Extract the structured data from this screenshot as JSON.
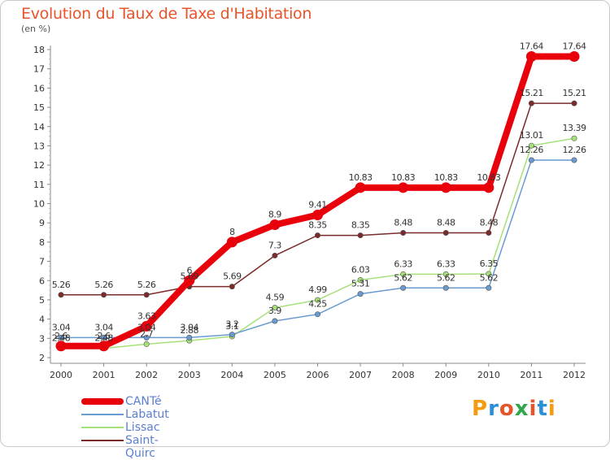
{
  "header": {
    "title": "Evolution du Taux de Taxe d'Habitation",
    "unit": "(en %)"
  },
  "chart_data": {
    "type": "line",
    "title": "Evolution du Taux de Taxe d'Habitation",
    "ylabel": "(en %)",
    "xlabel": "",
    "x": [
      2000,
      2001,
      2002,
      2003,
      2004,
      2005,
      2006,
      2007,
      2008,
      2009,
      2010,
      2011,
      2012
    ],
    "ylim": [
      2,
      18
    ],
    "yticks": [
      2,
      3,
      4,
      5,
      6,
      7,
      8,
      9,
      10,
      11,
      12,
      13,
      14,
      15,
      16,
      17,
      18
    ],
    "grid": false,
    "legend_position": "bottom-left",
    "series": [
      {
        "name": "CANTé",
        "color": "#e8000b",
        "values": [
          2.6,
          2.6,
          3.63,
          6,
          8,
          8.9,
          9.41,
          10.83,
          10.83,
          10.83,
          10.83,
          17.64,
          17.64
        ],
        "labels": [
          "2.6",
          "2.6",
          "3.63",
          "6",
          "8",
          "8.9",
          "9.41",
          "10.83",
          "10.83",
          "10.83",
          "10.83",
          "17.64",
          "17.64"
        ]
      },
      {
        "name": "Labatut",
        "color": "#6a9bd0",
        "values": [
          3.04,
          3.04,
          3.04,
          3.04,
          3.2,
          3.9,
          4.25,
          5.31,
          5.62,
          5.62,
          5.62,
          12.26,
          12.26
        ],
        "labels": [
          "3.04",
          "3.04",
          "3.04",
          "3.04",
          "3.2",
          "3.9",
          "4.25",
          "5.31",
          "5.62",
          "5.62",
          "5.62",
          "12.26",
          "12.26"
        ]
      },
      {
        "name": "Lissac",
        "color": "#a6e07a",
        "values": [
          2.48,
          2.48,
          2.7,
          2.88,
          3.1,
          4.59,
          4.99,
          6.03,
          6.33,
          6.33,
          6.35,
          13.01,
          13.39
        ],
        "labels": [
          "2.48",
          "2.48",
          "2.7",
          "2.88",
          "3.1",
          "4.59",
          "4.99",
          "6.03",
          "6.33",
          "6.33",
          "6.35",
          "13.01",
          "13.39"
        ]
      },
      {
        "name": "Saint-Quirc",
        "color": "#7b2a2a",
        "values": [
          5.26,
          5.26,
          5.26,
          5.69,
          5.69,
          7.3,
          8.35,
          8.35,
          8.48,
          8.48,
          8.48,
          15.21,
          15.21
        ],
        "labels": [
          "5.26",
          "5.26",
          "5.26",
          "5.69",
          "5.69",
          "7.3",
          "8.35",
          "8.35",
          "8.48",
          "8.48",
          "8.48",
          "15.21",
          "15.21"
        ]
      }
    ]
  },
  "legend": {
    "items": [
      {
        "label": "CANTé",
        "color": "#e8000b",
        "width": 8
      },
      {
        "label": "Labatut",
        "color": "#6a9bd0",
        "width": 2
      },
      {
        "label": "Lissac",
        "color": "#a6e07a",
        "width": 2
      },
      {
        "label": "Saint-Quirc",
        "color": "#7b2a2a",
        "width": 2
      }
    ]
  },
  "logo": {
    "text": "Proxiti",
    "colors": [
      "#f39c12",
      "#2a8fd6",
      "#e8542a",
      "#2ea84a",
      "#e8542a",
      "#2a8fd6",
      "#f39c12"
    ]
  }
}
